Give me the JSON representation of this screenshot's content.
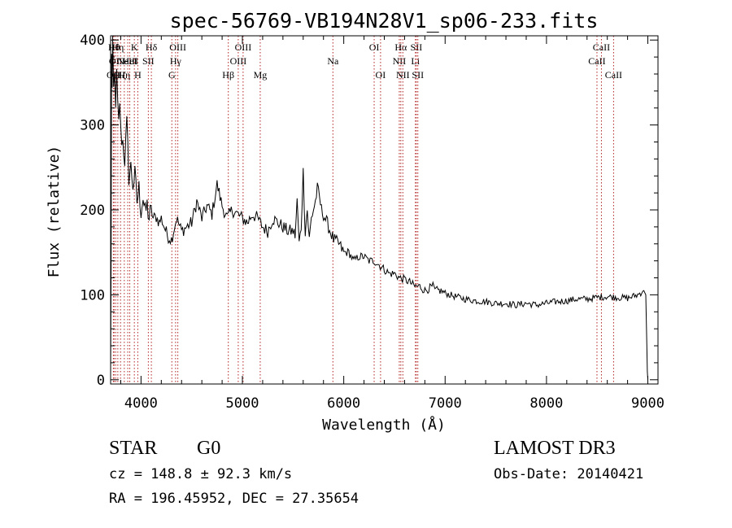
{
  "chart_data": {
    "type": "line",
    "title": "spec-56769-VB194N28V1_sp06-233.fits",
    "xlabel": "Wavelength (Å)",
    "ylabel": "Flux (relative)",
    "xlim": [
      3700,
      9100
    ],
    "ylim": [
      -5,
      405
    ],
    "x_ticks": [
      4000,
      5000,
      6000,
      7000,
      8000,
      9000
    ],
    "y_ticks": [
      0,
      100,
      200,
      300,
      400
    ],
    "grid": false,
    "line_color": "#000000",
    "marker_color": "#b22222",
    "series": [
      {
        "x": [
          3700,
          3705,
          3710,
          3715,
          3720,
          3730,
          3740,
          3750,
          3760,
          3770,
          3780,
          3790,
          3800,
          3820,
          3840,
          3860,
          3880,
          3900,
          3920,
          3940,
          3960,
          3980,
          4000,
          4020,
          4040,
          4060,
          4080,
          4100,
          4120,
          4150,
          4180,
          4200,
          4230,
          4260,
          4300,
          4350,
          4400,
          4450,
          4500,
          4550,
          4600,
          4650,
          4700,
          4750,
          4800,
          4850,
          4900,
          4950,
          5000,
          5050,
          5100,
          5150,
          5200,
          5250,
          5300,
          5350,
          5400,
          5450,
          5500,
          5520,
          5540,
          5560,
          5580,
          5600,
          5620,
          5640,
          5660,
          5680,
          5700,
          5720,
          5740,
          5760,
          5780,
          5800,
          5850,
          5900,
          5950,
          6000,
          6050,
          6100,
          6150,
          6200,
          6250,
          6300,
          6350,
          6400,
          6450,
          6500,
          6550,
          6600,
          6650,
          6700,
          6750,
          6800,
          6850,
          6880,
          6900,
          6950,
          7000,
          7100,
          7200,
          7300,
          7400,
          7500,
          7600,
          7700,
          7800,
          7900,
          8000,
          8100,
          8200,
          8300,
          8400,
          8500,
          8600,
          8700,
          8800,
          8900,
          8960,
          8980,
          8990,
          8995,
          9000
        ],
        "y": [
          0,
          140,
          380,
          330,
          400,
          340,
          370,
          310,
          360,
          320,
          300,
          330,
          290,
          280,
          260,
          300,
          240,
          250,
          230,
          240,
          210,
          225,
          200,
          215,
          195,
          205,
          190,
          200,
          190,
          192,
          185,
          190,
          180,
          170,
          165,
          190,
          175,
          180,
          185,
          210,
          190,
          205,
          195,
          230,
          205,
          190,
          200,
          195,
          190,
          185,
          195,
          190,
          180,
          175,
          190,
          185,
          180,
          175,
          175,
          170,
          210,
          160,
          180,
          245,
          175,
          200,
          165,
          190,
          200,
          210,
          225,
          215,
          200,
          195,
          180,
          165,
          160,
          150,
          150,
          140,
          145,
          145,
          140,
          140,
          135,
          130,
          125,
          125,
          120,
          118,
          115,
          110,
          110,
          105,
          108,
          110,
          105,
          105,
          102,
          98,
          95,
          93,
          92,
          90,
          90,
          88,
          90,
          88,
          90,
          92,
          93,
          95,
          95,
          97,
          98,
          97,
          96,
          100,
          105,
          100,
          40,
          10,
          0
        ]
      }
    ],
    "line_markers": [
      {
        "wave": 3727,
        "label": "OII",
        "row": 3
      },
      {
        "wave": 3734,
        "label": "Hθ",
        "row": 1
      },
      {
        "wave": 3750,
        "label": "OII",
        "row": 2
      },
      {
        "wave": 3771,
        "label": "Hη",
        "row": 1
      },
      {
        "wave": 3798,
        "label": "Hζ",
        "row": 3
      },
      {
        "wave": 3835,
        "label": "Hη",
        "row": 3
      },
      {
        "wave": 3869,
        "label": "NeIII",
        "row": 2
      },
      {
        "wave": 3889,
        "label": "HeI",
        "row": 2
      },
      {
        "wave": 3934,
        "label": "K",
        "row": 1
      },
      {
        "wave": 3968,
        "label": "H",
        "row": 3
      },
      {
        "wave": 4072,
        "label": "SII",
        "row": 2
      },
      {
        "wave": 4102,
        "label": "Hδ",
        "row": 1
      },
      {
        "wave": 4304,
        "label": "G",
        "row": 3
      },
      {
        "wave": 4341,
        "label": "Hγ",
        "row": 2
      },
      {
        "wave": 4363,
        "label": "OIII",
        "row": 1
      },
      {
        "wave": 4861,
        "label": "Hβ",
        "row": 3
      },
      {
        "wave": 4959,
        "label": "OIII",
        "row": 2
      },
      {
        "wave": 5007,
        "label": "OIII",
        "row": 1
      },
      {
        "wave": 5176,
        "label": "Mg",
        "row": 3
      },
      {
        "wave": 5893,
        "label": "Na",
        "row": 2
      },
      {
        "wave": 6300,
        "label": "OI",
        "row": 1
      },
      {
        "wave": 6363,
        "label": "OI",
        "row": 3
      },
      {
        "wave": 6548,
        "label": "NII",
        "row": 2
      },
      {
        "wave": 6563,
        "label": "Hα",
        "row": 1
      },
      {
        "wave": 6583,
        "label": "NII",
        "row": 3
      },
      {
        "wave": 6707,
        "label": "Li",
        "row": 2
      },
      {
        "wave": 6716,
        "label": "SII",
        "row": 1
      },
      {
        "wave": 6731,
        "label": "SII",
        "row": 3
      },
      {
        "wave": 8498,
        "label": "CaII",
        "row": 2
      },
      {
        "wave": 8542,
        "label": "CaII",
        "row": 1
      },
      {
        "wave": 8662,
        "label": "CaII",
        "row": 3
      }
    ]
  },
  "info": {
    "class": "STAR",
    "subclass": "G0",
    "survey": "LAMOST DR3",
    "cz": "cz = 148.8 ± 92.3 km/s",
    "obs_date": "Obs-Date: 20140421",
    "coords": "RA = 196.45952, DEC =  27.35654"
  }
}
